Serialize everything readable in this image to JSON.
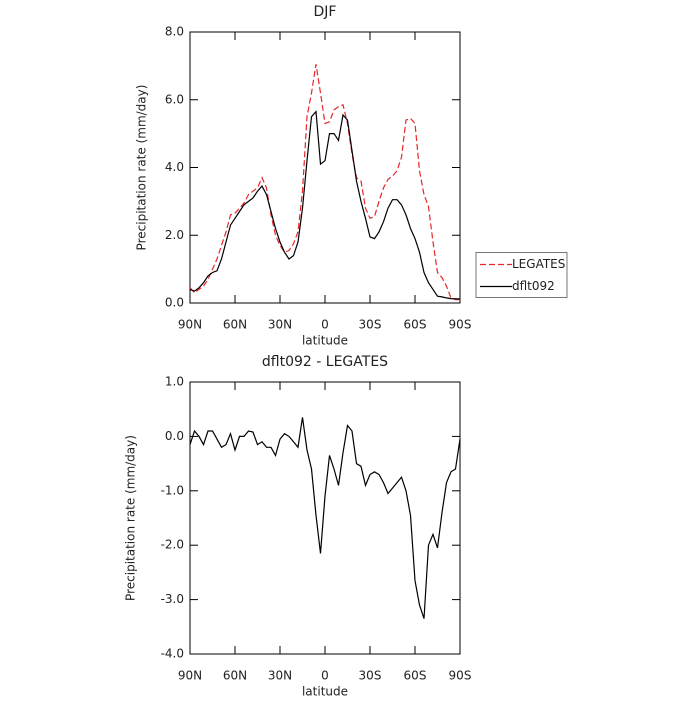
{
  "chart_data": [
    {
      "type": "line",
      "title": "DJF",
      "xlabel": "latitude",
      "ylabel": "Precipitation rate (mm/day)",
      "x": [
        90,
        87,
        84,
        81,
        78,
        75,
        72,
        69,
        66,
        63,
        60,
        57,
        54,
        51,
        48,
        45,
        42,
        39,
        36,
        33,
        30,
        27,
        24,
        21,
        18,
        15,
        12,
        9,
        6,
        3,
        0,
        -3,
        -6,
        -9,
        -12,
        -15,
        -18,
        -21,
        -24,
        -27,
        -30,
        -33,
        -36,
        -39,
        -42,
        -45,
        -48,
        -51,
        -54,
        -57,
        -60,
        -63,
        -66,
        -69,
        -72,
        -75,
        -78,
        -81,
        -84,
        -87,
        -90
      ],
      "series": [
        {
          "name": "LEGATES",
          "color": "#e8262a",
          "dash": true,
          "values": [
            0.45,
            0.3,
            0.4,
            0.5,
            0.7,
            1.0,
            1.3,
            1.7,
            2.1,
            2.6,
            2.65,
            2.8,
            2.95,
            3.2,
            3.3,
            3.4,
            3.7,
            3.4,
            2.6,
            2.0,
            1.7,
            1.5,
            1.55,
            1.75,
            2.1,
            3.3,
            5.5,
            6.2,
            7.05,
            6.2,
            5.3,
            5.35,
            5.7,
            5.8,
            5.85,
            5.3,
            4.4,
            3.7,
            3.6,
            2.8,
            2.5,
            2.55,
            3.0,
            3.4,
            3.65,
            3.75,
            3.9,
            4.3,
            5.4,
            5.45,
            5.3,
            3.9,
            3.2,
            2.85,
            1.8,
            0.9,
            0.75,
            0.5,
            0.15,
            0.1,
            0.1
          ]
        },
        {
          "name": "dflt092",
          "color": "#000000",
          "dash": false,
          "values": [
            0.4,
            0.35,
            0.45,
            0.6,
            0.8,
            0.9,
            0.95,
            1.3,
            1.8,
            2.3,
            2.5,
            2.7,
            2.9,
            3.0,
            3.1,
            3.3,
            3.45,
            3.2,
            2.7,
            2.2,
            1.8,
            1.5,
            1.3,
            1.4,
            1.8,
            2.8,
            4.2,
            5.5,
            5.65,
            4.1,
            4.2,
            5.0,
            5.0,
            4.8,
            5.55,
            5.4,
            4.5,
            3.6,
            3.0,
            2.5,
            1.95,
            1.9,
            2.1,
            2.4,
            2.8,
            3.05,
            3.05,
            2.9,
            2.6,
            2.2,
            1.9,
            1.5,
            0.9,
            0.6,
            0.4,
            0.2,
            0.18,
            0.15,
            0.13,
            0.12,
            0.12
          ]
        }
      ],
      "xlim": [
        90,
        -90
      ],
      "xticks": [
        {
          "value": 90,
          "label": "90N"
        },
        {
          "value": 60,
          "label": "60N"
        },
        {
          "value": 30,
          "label": "30N"
        },
        0,
        {
          "value": -30,
          "label": "30S"
        },
        {
          "value": -60,
          "label": "60S"
        },
        {
          "value": -90,
          "label": "90S"
        }
      ],
      "ylim": [
        0,
        8
      ],
      "yticks": [
        {
          "value": 0,
          "label": "0.0"
        },
        {
          "value": 2,
          "label": "2.0"
        },
        {
          "value": 4,
          "label": "4.0"
        },
        {
          "value": 6,
          "label": "6.0"
        },
        {
          "value": 8,
          "label": "8.0"
        }
      ],
      "legend": "right"
    },
    {
      "type": "line",
      "title": "dflt092 - LEGATES",
      "xlabel": "latitude",
      "ylabel": "Precipitation rate (mm/day)",
      "x": [
        90,
        87,
        84,
        81,
        78,
        75,
        72,
        69,
        66,
        63,
        60,
        57,
        54,
        51,
        48,
        45,
        42,
        39,
        36,
        33,
        30,
        27,
        24,
        21,
        18,
        15,
        12,
        9,
        6,
        3,
        0,
        -3,
        -6,
        -9,
        -12,
        -15,
        -18,
        -21,
        -24,
        -27,
        -30,
        -33,
        -36,
        -39,
        -42,
        -45,
        -48,
        -51,
        -54,
        -57,
        -60,
        -63,
        -66,
        -69,
        -72,
        -75,
        -78,
        -81,
        -84,
        -87,
        -90
      ],
      "values": [
        -0.15,
        0.1,
        0,
        -0.15,
        0.1,
        0.1,
        -0.05,
        -0.2,
        -0.15,
        0.05,
        -0.25,
        0,
        0,
        0.1,
        0.08,
        -0.15,
        -0.1,
        -0.2,
        -0.2,
        -0.35,
        -0.05,
        0.05,
        0,
        -0.1,
        -0.2,
        0.35,
        -0.25,
        -0.6,
        -1.45,
        -2.15,
        -1.1,
        -0.35,
        -0.6,
        -0.9,
        -0.3,
        0.2,
        0.1,
        -0.5,
        -0.55,
        -0.9,
        -0.7,
        -0.65,
        -0.7,
        -0.85,
        -1.05,
        -0.95,
        -0.85,
        -0.75,
        -1.0,
        -1.45,
        -2.65,
        -3.1,
        -3.35,
        -2.0,
        -1.8,
        -2.05,
        -1.4,
        -0.85,
        -0.65,
        -0.6,
        -0.05
      ],
      "color": "#000000",
      "xlim": [
        90,
        -90
      ],
      "xticks": [
        {
          "value": 90,
          "label": "90N"
        },
        {
          "value": 60,
          "label": "60N"
        },
        {
          "value": 30,
          "label": "30N"
        },
        0,
        {
          "value": -30,
          "label": "30S"
        },
        {
          "value": -60,
          "label": "60S"
        },
        {
          "value": -90,
          "label": "90S"
        }
      ],
      "ylim": [
        -4,
        1
      ],
      "yticks": [
        {
          "value": -4,
          "label": "-4.0"
        },
        {
          "value": -3,
          "label": "-3.0"
        },
        {
          "value": -2,
          "label": "-2.0"
        },
        {
          "value": -1,
          "label": "-1.0"
        },
        {
          "value": 0,
          "label": "0.0"
        },
        {
          "value": 1,
          "label": "1.0"
        }
      ]
    }
  ]
}
